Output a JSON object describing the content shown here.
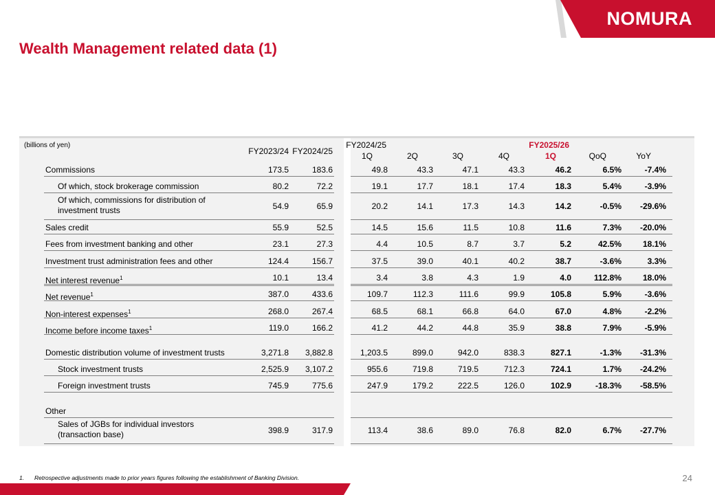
{
  "brand": {
    "logo_text": "NOMURA",
    "accent_color": "#c8102e"
  },
  "title": "Wealth Management related data (1)",
  "table": {
    "unit_label": "(billions of yen)",
    "headers": {
      "fy2324": "FY2023/24",
      "fy2425": "FY2024/25",
      "fy2425_group": "FY2024/25",
      "fy2526_group": "FY2025/26",
      "q1": "1Q",
      "q2": "2Q",
      "q3": "3Q",
      "q4": "4Q",
      "q1_new": "1Q",
      "qoq": "QoQ",
      "yoy": "YoY"
    },
    "rows": [
      {
        "label": "Commissions",
        "sup": "",
        "values": [
          "173.5",
          "183.6",
          "49.8",
          "43.3",
          "47.1",
          "43.3",
          "46.2",
          "6.5%",
          "-7.4%"
        ]
      },
      {
        "label": "Of which, stock brokerage commission",
        "sup": "",
        "values": [
          "80.2",
          "72.2",
          "19.1",
          "17.7",
          "18.1",
          "17.4",
          "18.3",
          "5.4%",
          "-3.9%"
        ]
      },
      {
        "label": "Of which, commissions for distribution of investment trusts",
        "sup": "",
        "values": [
          "54.9",
          "65.9",
          "20.2",
          "14.1",
          "17.3",
          "14.3",
          "14.2",
          "-0.5%",
          "-29.6%"
        ]
      },
      {
        "label": "Sales credit",
        "sup": "",
        "values": [
          "55.9",
          "52.5",
          "14.5",
          "15.6",
          "11.5",
          "10.8",
          "11.6",
          "7.3%",
          "-20.0%"
        ]
      },
      {
        "label": "Fees from investment banking and other",
        "sup": "",
        "values": [
          "23.1",
          "27.3",
          "4.4",
          "10.5",
          "8.7",
          "3.7",
          "5.2",
          "42.5%",
          "18.1%"
        ]
      },
      {
        "label": "Investment trust administration fees and other",
        "sup": "",
        "values": [
          "124.4",
          "156.7",
          "37.5",
          "39.0",
          "40.1",
          "40.2",
          "38.7",
          "-3.6%",
          "3.3%"
        ]
      },
      {
        "label": "Net interest revenue",
        "sup": "1",
        "values": [
          "10.1",
          "13.4",
          "3.4",
          "3.8",
          "4.3",
          "1.9",
          "4.0",
          "112.8%",
          "18.0%"
        ]
      },
      {
        "label": "Net revenue",
        "sup": "1",
        "values": [
          "387.0",
          "433.6",
          "109.7",
          "112.3",
          "111.6",
          "99.9",
          "105.8",
          "5.9%",
          "-3.6%"
        ]
      },
      {
        "label": "Non-interest expenses",
        "sup": "1",
        "values": [
          "268.0",
          "267.4",
          "68.5",
          "68.1",
          "66.8",
          "64.0",
          "67.0",
          "4.8%",
          "-2.2%"
        ]
      },
      {
        "label": "Income before income taxes",
        "sup": "1",
        "values": [
          "119.0",
          "166.2",
          "41.2",
          "44.2",
          "44.8",
          "35.9",
          "38.8",
          "7.9%",
          "-5.9%"
        ]
      },
      {
        "label": "Domestic distribution volume of investment trusts",
        "sup": "",
        "values": [
          "3,271.8",
          "3,882.8",
          "1,203.5",
          "899.0",
          "942.0",
          "838.3",
          "827.1",
          "-1.3%",
          "-31.3%"
        ]
      },
      {
        "label": "Stock investment trusts",
        "sup": "",
        "values": [
          "2,525.9",
          "3,107.2",
          "955.6",
          "719.8",
          "719.5",
          "712.3",
          "724.1",
          "1.7%",
          "-24.2%"
        ]
      },
      {
        "label": "Foreign investment trusts",
        "sup": "",
        "values": [
          "745.9",
          "775.6",
          "247.9",
          "179.2",
          "222.5",
          "126.0",
          "102.9",
          "-18.3%",
          "-58.5%"
        ]
      },
      {
        "label": "Other",
        "sup": "",
        "values": []
      },
      {
        "label": "Sales of JGBs for individual investors (transaction base)",
        "sup": "",
        "values": [
          "398.9",
          "317.9",
          "113.4",
          "38.6",
          "89.0",
          "76.8",
          "82.0",
          "6.7%",
          "-27.7%"
        ]
      }
    ]
  },
  "footnote": {
    "number": "1.",
    "text": "Retrospective adjustments made to prior years figures following the establishment of Banking Division."
  },
  "page_number": "24"
}
